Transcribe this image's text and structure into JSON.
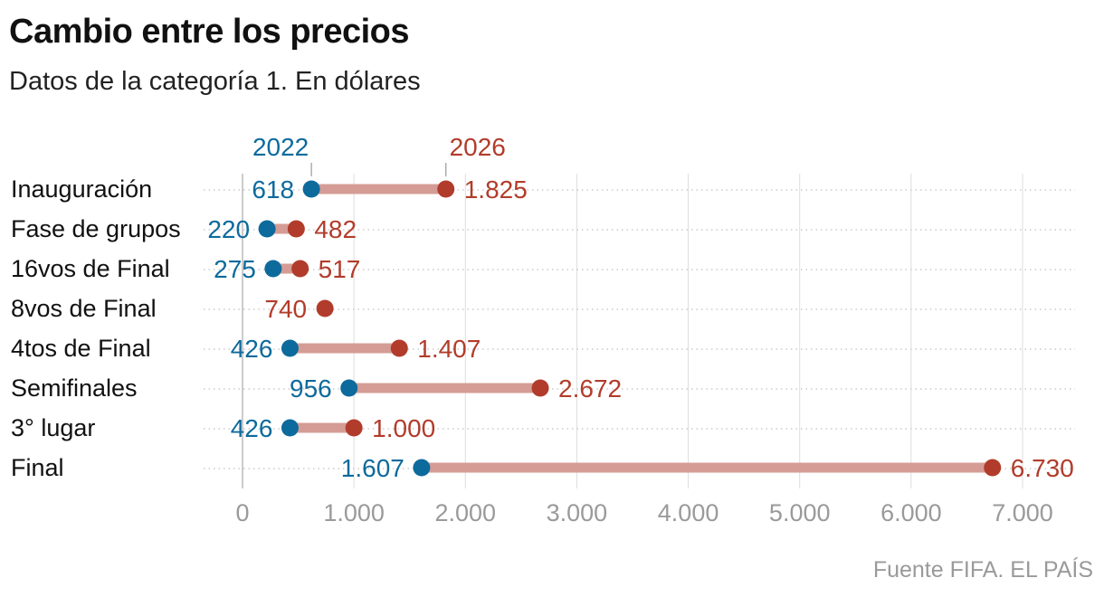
{
  "title": "Cambio entre los precios",
  "subtitle": "Datos de la categoría 1. En dólares",
  "source": "Fuente FIFA. EL PAÍS",
  "colors": {
    "series_2022": "#0d6a9c",
    "series_2026": "#b23c2b",
    "connector": "#d59c96",
    "row_line": "#cccccc",
    "grid": "#dddddd",
    "axis_text": "#9a9a9a",
    "label_text": "#111111"
  },
  "chart_data": {
    "type": "dumbbell",
    "xlim": [
      0,
      7000
    ],
    "x_ticks": [
      0,
      1000,
      2000,
      3000,
      4000,
      5000,
      6000,
      7000
    ],
    "x_tick_labels": [
      "0",
      "1.000",
      "2.000",
      "3.000",
      "4.000",
      "5.000",
      "6.000",
      "7.000"
    ],
    "series": [
      {
        "name": "2022",
        "key": "v2022"
      },
      {
        "name": "2026",
        "key": "v2026"
      }
    ],
    "rows": [
      {
        "category": "Inauguración",
        "v2022": 618,
        "label_2022": "618",
        "v2026": 1825,
        "label_2026": "1.825"
      },
      {
        "category": "Fase de grupos",
        "v2022": 220,
        "label_2022": "220",
        "v2026": 482,
        "label_2026": "482"
      },
      {
        "category": "16vos de Final",
        "v2022": 275,
        "label_2022": "275",
        "v2026": 517,
        "label_2026": "517"
      },
      {
        "category": "8vos de Final",
        "v2022": null,
        "label_2022": "",
        "v2026": 740,
        "label_2026": "740"
      },
      {
        "category": "4tos de Final",
        "v2022": 426,
        "label_2022": "426",
        "v2026": 1407,
        "label_2026": "1.407"
      },
      {
        "category": "Semifinales",
        "v2022": 956,
        "label_2022": "956",
        "v2026": 2672,
        "label_2026": "2.672"
      },
      {
        "category": "3° lugar",
        "v2022": 426,
        "label_2022": "426",
        "v2026": 1000,
        "label_2026": "1.000"
      },
      {
        "category": "Final",
        "v2022": 1607,
        "label_2022": "1.607",
        "v2026": 6730,
        "label_2026": "6.730"
      }
    ]
  }
}
